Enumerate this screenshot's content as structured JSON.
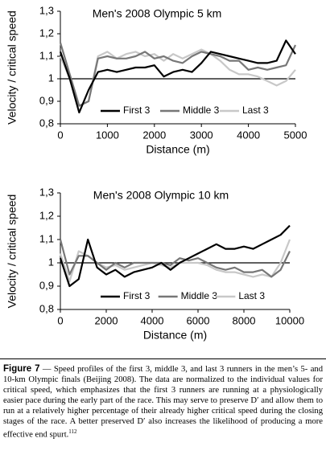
{
  "chart_data": [
    {
      "type": "line",
      "title": "Men's 2008 Olympic 5 km",
      "x_label": "Distance (m)",
      "y_label": "Velocity / critical speed",
      "x": [
        0,
        200,
        400,
        600,
        800,
        1000,
        1200,
        1400,
        1600,
        1800,
        2000,
        2200,
        2400,
        2600,
        2800,
        3000,
        3200,
        3400,
        3600,
        3800,
        4000,
        4200,
        4400,
        4600,
        4800,
        5000
      ],
      "series": [
        {
          "name": "First 3",
          "color": "#000000",
          "values": [
            1.12,
            1.0,
            0.85,
            0.95,
            1.03,
            1.04,
            1.03,
            1.04,
            1.05,
            1.05,
            1.06,
            1.01,
            1.03,
            1.04,
            1.03,
            1.07,
            1.12,
            1.11,
            1.1,
            1.09,
            1.08,
            1.07,
            1.07,
            1.08,
            1.17,
            1.11
          ]
        },
        {
          "name": "Middle 3",
          "color": "#777777",
          "values": [
            1.16,
            1.02,
            0.88,
            0.9,
            1.09,
            1.1,
            1.09,
            1.09,
            1.1,
            1.12,
            1.09,
            1.1,
            1.08,
            1.07,
            1.1,
            1.12,
            1.11,
            1.1,
            1.08,
            1.08,
            1.04,
            1.05,
            1.04,
            1.05,
            1.06,
            1.15
          ]
        },
        {
          "name": "Last 3",
          "color": "#c8c8c8",
          "values": [
            1.1,
            1.0,
            0.88,
            0.9,
            1.1,
            1.12,
            1.09,
            1.11,
            1.12,
            1.1,
            1.11,
            1.08,
            1.11,
            1.09,
            1.11,
            1.13,
            1.11,
            1.08,
            1.04,
            1.02,
            1.02,
            1.01,
            0.99,
            0.97,
            0.99,
            1.04
          ]
        }
      ],
      "xlim": [
        0,
        5000
      ],
      "xticks": [
        0,
        1000,
        2000,
        3000,
        4000,
        5000
      ],
      "ylim": [
        0.8,
        1.3
      ],
      "yticks": [
        {
          "value": 0.8,
          "label": "0,8"
        },
        {
          "value": 0.9,
          "label": "0,9"
        },
        1,
        {
          "value": 1.1,
          "label": "1,1"
        },
        {
          "value": 1.2,
          "label": "1,2"
        },
        {
          "value": 1.3,
          "label": "1,3"
        }
      ],
      "reference_line": 1,
      "legend": "bottom"
    },
    {
      "type": "line",
      "title": "Men's 2008 Olympic 10 km",
      "x_label": "Distance (m)",
      "y_label": "Velocity / critical speed",
      "x": [
        0,
        400,
        800,
        1200,
        1600,
        2000,
        2400,
        2800,
        3200,
        3600,
        4000,
        4400,
        4800,
        5200,
        5600,
        6000,
        6400,
        6800,
        7200,
        7600,
        8000,
        8400,
        8800,
        9200,
        9600,
        10000
      ],
      "series": [
        {
          "name": "First 3",
          "color": "#000000",
          "values": [
            1.02,
            0.9,
            0.93,
            1.1,
            0.98,
            0.95,
            0.97,
            0.94,
            0.96,
            0.97,
            0.98,
            1.0,
            0.97,
            1.0,
            1.02,
            1.04,
            1.06,
            1.08,
            1.06,
            1.06,
            1.07,
            1.06,
            1.08,
            1.1,
            1.12,
            1.16
          ]
        },
        {
          "name": "Middle 3",
          "color": "#777777",
          "values": [
            1.1,
            0.95,
            1.03,
            1.03,
            1.0,
            0.97,
            1.0,
            0.98,
            1.0,
            1.0,
            1.0,
            1.0,
            0.99,
            1.02,
            1.01,
            1.02,
            1.0,
            0.98,
            0.97,
            0.98,
            0.96,
            0.96,
            0.97,
            0.94,
            0.97,
            1.05
          ]
        },
        {
          "name": "Last 3",
          "color": "#c8c8c8",
          "values": [
            1.04,
            0.92,
            1.05,
            1.03,
            1.0,
            0.98,
            0.99,
            0.97,
            0.98,
            0.99,
            1.0,
            0.99,
            0.98,
            1.0,
            1.0,
            1.0,
            0.99,
            0.97,
            0.96,
            0.96,
            0.95,
            0.94,
            0.95,
            0.94,
            1.0,
            1.1
          ]
        }
      ],
      "xlim": [
        0,
        10000
      ],
      "xticks": [
        0,
        2000,
        4000,
        6000,
        8000,
        10000
      ],
      "ylim": [
        0.8,
        1.3
      ],
      "yticks": [
        {
          "value": 0.8,
          "label": "0,8"
        },
        {
          "value": 0.9,
          "label": "0,9"
        },
        1,
        {
          "value": 1.1,
          "label": "1,1"
        },
        {
          "value": 1.2,
          "label": "1,2"
        },
        {
          "value": 1.3,
          "label": "1,3"
        }
      ],
      "reference_line": 1,
      "legend": "bottom"
    }
  ],
  "caption": {
    "label": "Figure 7",
    "text": "— Speed profiles of the first 3, middle 3, and last 3 runners in the men’s 5- and 10-km Olympic finals (Beijing 2008). The data are normalized to the individual values for critical speed, which emphasizes that the first 3 runners are running at a physiologically easier pace during the early part of the race. This may serve to preserve D′ and allow them to run at a relatively higher percentage of their already higher critical speed during the closing stages of the race. A better preserved D′ also increases the likelihood of producing a more effective end spurt.",
    "reference": "112"
  }
}
